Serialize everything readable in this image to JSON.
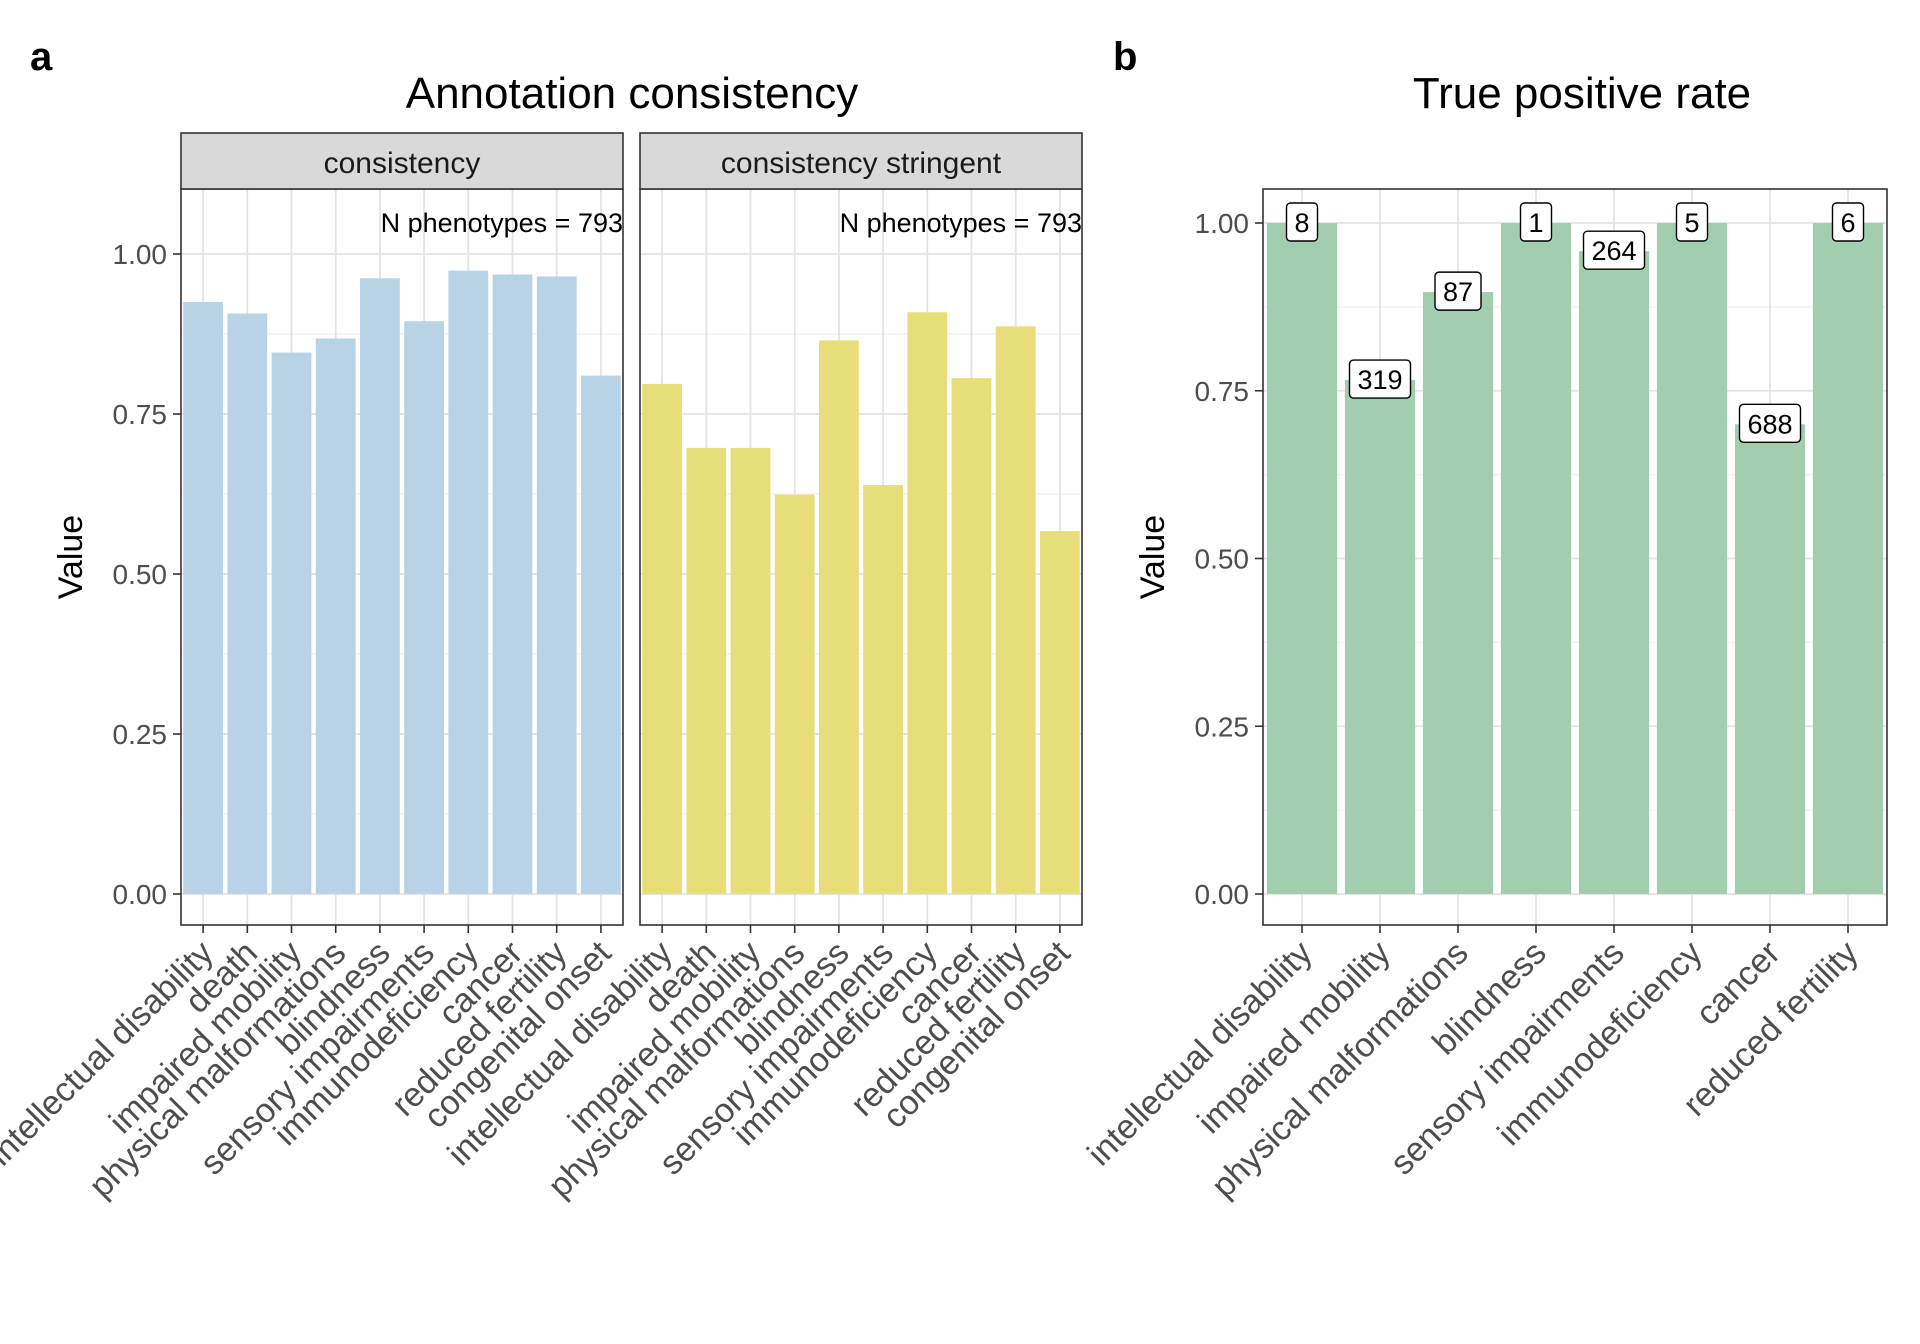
{
  "figure": {
    "panel_a_letter": "a",
    "panel_b_letter": "b",
    "panel_a_title": "Annotation consistency",
    "panel_b_title": "True positive rate"
  },
  "chart_data": [
    {
      "type": "bar",
      "title": "Annotation consistency",
      "ylabel": "Value",
      "xlabel": "",
      "ylim": [
        0,
        1.1
      ],
      "yticks": [
        "0.00",
        "0.25",
        "0.50",
        "0.75",
        "1.00"
      ],
      "grid": true,
      "facets": [
        {
          "strip": "consistency",
          "annotation": "N phenotypes = 793",
          "color": "#b8d3e6",
          "categories": [
            "intellectual disability",
            "death",
            "impaired mobility",
            "physical malformations",
            "blindness",
            "sensory impairments",
            "immunodeficiency",
            "cancer",
            "reduced fertility",
            "congenital onset"
          ],
          "values": [
            0.925,
            0.907,
            0.846,
            0.868,
            0.962,
            0.895,
            0.974,
            0.968,
            0.965,
            0.81
          ]
        },
        {
          "strip": "consistency stringent",
          "annotation": "N phenotypes = 793",
          "color": "#e7de7a",
          "categories": [
            "intellectual disability",
            "death",
            "impaired mobility",
            "physical malformations",
            "blindness",
            "sensory impairments",
            "immunodeficiency",
            "cancer",
            "reduced fertility",
            "congenital onset"
          ],
          "values": [
            0.797,
            0.697,
            0.697,
            0.624,
            0.865,
            0.639,
            0.909,
            0.806,
            0.887,
            0.567
          ]
        }
      ]
    },
    {
      "type": "bar",
      "title": "True positive rate",
      "ylabel": "Value",
      "xlabel": "",
      "ylim": [
        0,
        1.05
      ],
      "yticks": [
        "0.00",
        "0.25",
        "0.50",
        "0.75",
        "1.00"
      ],
      "grid": true,
      "color": "#a3cdaf",
      "categories": [
        "intellectual disability",
        "impaired mobility",
        "physical malformations",
        "blindness",
        "sensory impairments",
        "immunodeficiency",
        "cancer",
        "reduced fertility"
      ],
      "values": [
        1.0,
        0.766,
        0.897,
        1.0,
        0.958,
        1.0,
        0.7,
        1.0
      ],
      "labels": [
        "8",
        "319",
        "87",
        "1",
        "264",
        "5",
        "688",
        "6"
      ]
    }
  ]
}
